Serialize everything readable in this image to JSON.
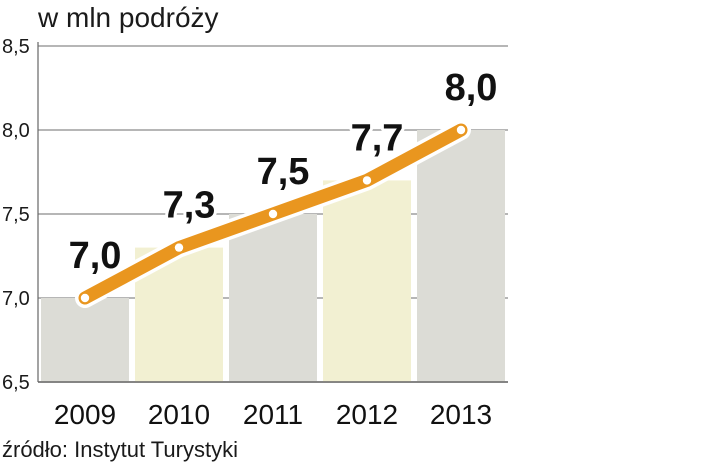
{
  "chart_data": {
    "type": "bar",
    "unit_label": "w mln podróży",
    "categories": [
      "2009",
      "2010",
      "2011",
      "2012",
      "2013"
    ],
    "values": [
      7.0,
      7.3,
      7.5,
      7.7,
      8.0
    ],
    "data_labels": [
      "7,0",
      "7,3",
      "7,5",
      "7,7",
      "8,0"
    ],
    "y_ticks": [
      6.5,
      7.0,
      7.5,
      8.0,
      8.5
    ],
    "y_tick_labels": [
      "6,5",
      "7,0",
      "7,5",
      "8,0",
      "8,5"
    ],
    "ylim": [
      6.5,
      8.5
    ],
    "grid": true,
    "overlay": "line",
    "colors": {
      "bar_gray": "#dcdcd6",
      "bar_yellow": "#f2f0d2",
      "line": "#e9961f",
      "line_outline": "#ffffff",
      "grid": "#8a8a8a"
    },
    "bar_color_pattern": [
      "bar_gray",
      "bar_yellow",
      "bar_gray",
      "bar_yellow",
      "bar_gray"
    ]
  },
  "source": "źródło: Instytut Turystyki"
}
